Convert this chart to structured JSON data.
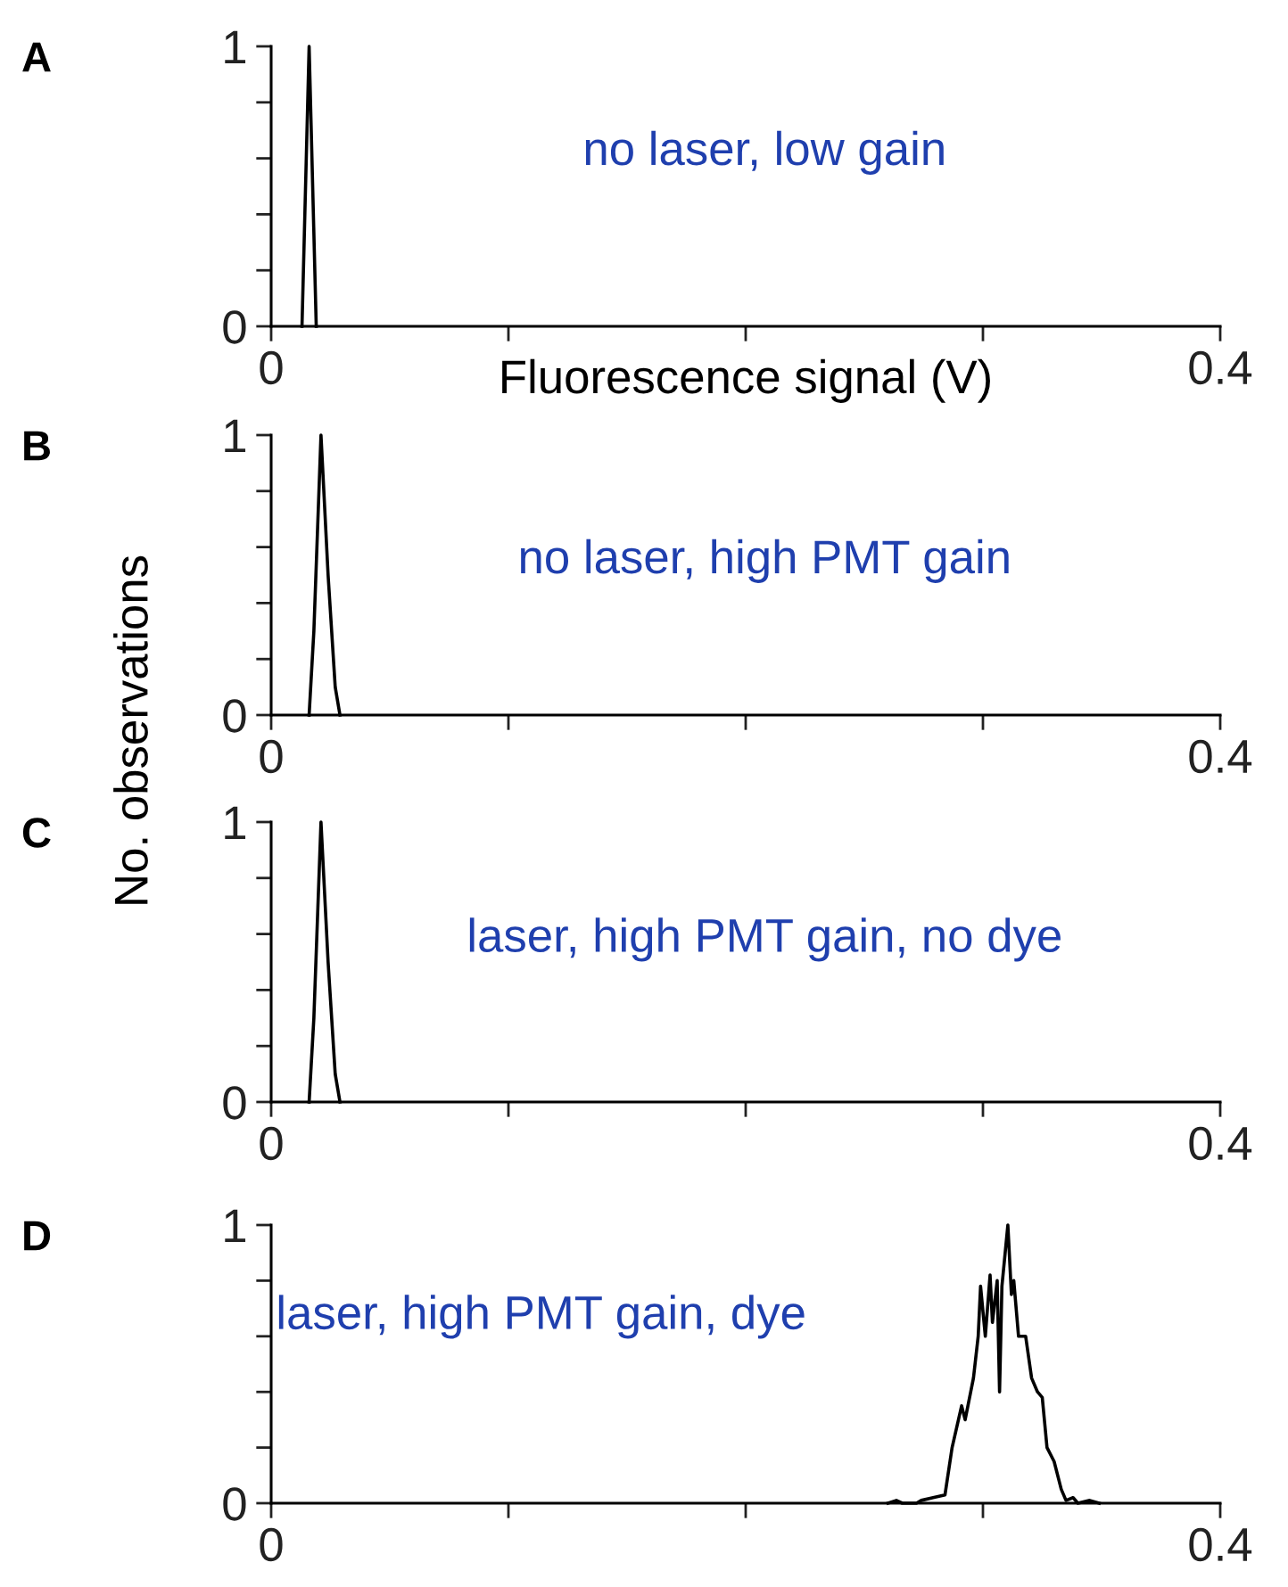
{
  "chart_data": [
    {
      "type": "line",
      "title": "A",
      "xlabel": "Fluorescence signal (V)",
      "annotations": [
        "no laser, low gain"
      ],
      "series": [
        {
          "color": "#000000",
          "x": [
            0.013,
            0.016,
            0.019
          ],
          "values": [
            0,
            1,
            0
          ]
        }
      ],
      "xlim": [
        0,
        0.4
      ],
      "xticks": [
        0,
        {
          "value": 0.1,
          "label": null
        },
        {
          "value": 0.2,
          "label": null
        },
        {
          "value": 0.3,
          "label": null
        },
        0.4
      ],
      "ylim": [
        0,
        1
      ],
      "yticks": [
        0,
        {
          "value": 0.2,
          "label": null
        },
        {
          "value": 0.4,
          "label": null
        },
        {
          "value": 0.6,
          "label": null
        },
        {
          "value": 0.8,
          "label": null
        },
        1
      ]
    },
    {
      "type": "line",
      "title": "B",
      "ylabel": "No. observations",
      "annotations": [
        "no laser, high PMT gain"
      ],
      "series": [
        {
          "color": "#000000",
          "x": [
            0.016,
            0.018,
            0.021,
            0.024,
            0.027,
            0.029
          ],
          "values": [
            0,
            0.3,
            1,
            0.5,
            0.1,
            0
          ]
        }
      ],
      "xlim": [
        0,
        0.4
      ],
      "xticks": [
        0,
        {
          "value": 0.1,
          "label": null
        },
        {
          "value": 0.2,
          "label": null
        },
        {
          "value": 0.3,
          "label": null
        },
        0.4
      ],
      "ylim": [
        0,
        1
      ],
      "yticks": [
        0,
        {
          "value": 0.2,
          "label": null
        },
        {
          "value": 0.4,
          "label": null
        },
        {
          "value": 0.6,
          "label": null
        },
        {
          "value": 0.8,
          "label": null
        },
        1
      ]
    },
    {
      "type": "line",
      "title": "C",
      "annotations": [
        "laser, high PMT gain, no dye"
      ],
      "series": [
        {
          "color": "#000000",
          "x": [
            0.016,
            0.018,
            0.021,
            0.024,
            0.027,
            0.029
          ],
          "values": [
            0,
            0.3,
            1,
            0.5,
            0.1,
            0
          ]
        }
      ],
      "xlim": [
        0,
        0.4
      ],
      "xticks": [
        0,
        {
          "value": 0.1,
          "label": null
        },
        {
          "value": 0.2,
          "label": null
        },
        {
          "value": 0.3,
          "label": null
        },
        0.4
      ],
      "ylim": [
        0,
        1
      ],
      "yticks": [
        0,
        {
          "value": 0.2,
          "label": null
        },
        {
          "value": 0.4,
          "label": null
        },
        {
          "value": 0.6,
          "label": null
        },
        {
          "value": 0.8,
          "label": null
        },
        1
      ]
    },
    {
      "type": "line",
      "title": "D",
      "annotations": [
        "laser, high PMT gain, dye"
      ],
      "series": [
        {
          "color": "#000000",
          "x": [
            0.26,
            0.2635,
            0.266,
            0.272,
            0.274,
            0.279,
            0.284,
            0.287,
            0.291,
            0.2925,
            0.296,
            0.298,
            0.299,
            0.301,
            0.303,
            0.304,
            0.306,
            0.307,
            0.308,
            0.3105,
            0.312,
            0.313,
            0.315,
            0.318,
            0.3205,
            0.323,
            0.325,
            0.327,
            0.33,
            0.333,
            0.335,
            0.338,
            0.34,
            0.345,
            0.349
          ],
          "values": [
            0,
            0.01,
            0,
            0,
            0.01,
            0.02,
            0.03,
            0.2,
            0.35,
            0.3,
            0.45,
            0.6,
            0.78,
            0.6,
            0.82,
            0.65,
            0.8,
            0.4,
            0.78,
            1,
            0.75,
            0.8,
            0.6,
            0.6,
            0.45,
            0.4,
            0.38,
            0.2,
            0.15,
            0.05,
            0.01,
            0.02,
            0,
            0.01,
            0
          ]
        }
      ],
      "xlim": [
        0,
        0.4
      ],
      "xticks": [
        0,
        {
          "value": 0.1,
          "label": null
        },
        {
          "value": 0.2,
          "label": null
        },
        {
          "value": 0.3,
          "label": null
        },
        0.4
      ],
      "ylim": [
        0,
        1
      ],
      "yticks": [
        0,
        {
          "value": 0.2,
          "label": null
        },
        {
          "value": 0.4,
          "label": null
        },
        {
          "value": 0.6,
          "label": null
        },
        {
          "value": 0.8,
          "label": null
        },
        1
      ]
    }
  ]
}
